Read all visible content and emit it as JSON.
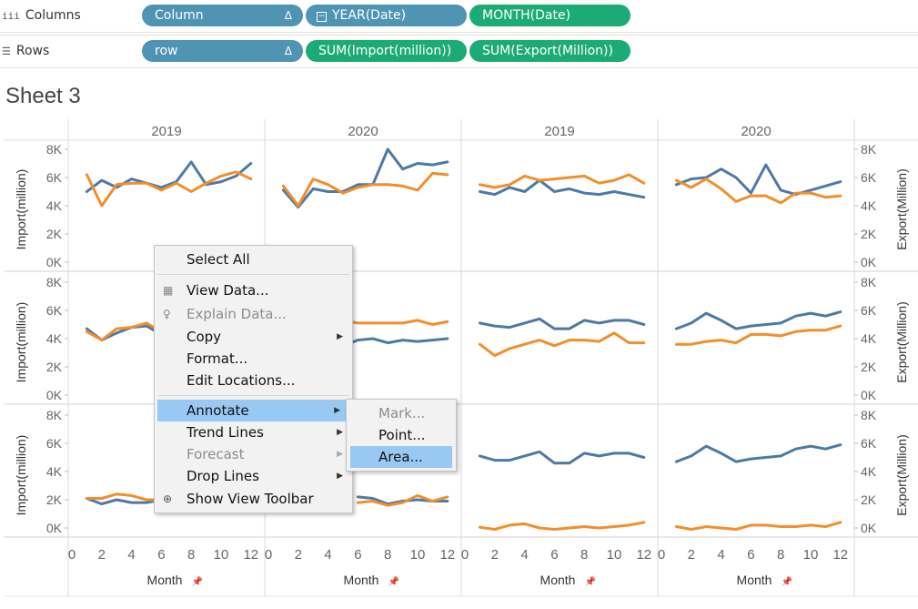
{
  "shelves": {
    "columns": {
      "label": "Columns",
      "pills": [
        {
          "text": "Column",
          "color": "blue",
          "delta": "Δ"
        },
        {
          "text": "YEAR(Date)",
          "color": "blue",
          "prefix": "⊟"
        },
        {
          "text": "MONTH(Date)",
          "color": "green"
        }
      ]
    },
    "rows": {
      "label": "Rows",
      "pills": [
        {
          "text": "row",
          "color": "blue",
          "delta": "Δ"
        },
        {
          "text": "SUM(Import(million))",
          "color": "green"
        },
        {
          "text": "SUM(Export(Million))",
          "color": "green"
        }
      ]
    }
  },
  "sheet_title": "Sheet 3",
  "context_menu": {
    "items": [
      {
        "label": "Select All",
        "enabled": true
      },
      {
        "label": "View Data...",
        "enabled": true,
        "icon": "grid-icon"
      },
      {
        "label": "Explain Data...",
        "enabled": false,
        "icon": "lightbulb-icon"
      },
      {
        "label": "Copy",
        "enabled": true,
        "submenu": true
      },
      {
        "label": "Format...",
        "enabled": true
      },
      {
        "label": "Edit Locations...",
        "enabled": true
      },
      {
        "label": "Annotate",
        "enabled": true,
        "submenu": true,
        "highlighted": true
      },
      {
        "label": "Trend Lines",
        "enabled": true,
        "submenu": true
      },
      {
        "label": "Forecast",
        "enabled": false,
        "submenu": true
      },
      {
        "label": "Drop Lines",
        "enabled": true,
        "submenu": true
      },
      {
        "label": "Show View Toolbar",
        "enabled": true,
        "icon": "zoom-icon"
      }
    ],
    "annotate_submenu": [
      {
        "label": "Mark...",
        "enabled": false
      },
      {
        "label": "Point...",
        "enabled": true
      },
      {
        "label": "Area...",
        "enabled": true,
        "highlighted": true
      }
    ]
  },
  "colors": {
    "import": "#4e79a7",
    "export": "#f28e2b",
    "pill_blue": "#4f94b3",
    "pill_green": "#1cab77",
    "menu_highlight": "#99c9f2"
  },
  "chart_data": {
    "type": "line",
    "layout": "3 rows x 4 columns small multiples, dual axis",
    "column_headers": [
      "2019",
      "2020",
      "2019",
      "2020"
    ],
    "x_label": "Month",
    "x_ticks": [
      "0",
      "2",
      "4",
      "6",
      "8",
      "10",
      "12"
    ],
    "xlim": [
      0,
      12.5
    ],
    "left_axis_label": "Import(million)",
    "right_axis_label": "Export(Million)",
    "y_ticks": [
      "0K",
      "2K",
      "4K",
      "6K",
      "8K"
    ],
    "ylim": [
      0,
      8000
    ],
    "x": [
      1,
      2,
      3,
      4,
      5,
      6,
      7,
      8,
      9,
      10,
      11,
      12
    ],
    "panels": [
      {
        "row": 0,
        "col": 0,
        "series": [
          {
            "name": "Import",
            "values": [
              5000,
              5800,
              5300,
              5900,
              5600,
              5300,
              5700,
              7100,
              5500,
              5700,
              6100,
              7000
            ]
          },
          {
            "name": "Export",
            "values": [
              6200,
              4000,
              5500,
              5600,
              5600,
              5100,
              5600,
              5000,
              5600,
              6100,
              6400,
              5900
            ]
          }
        ]
      },
      {
        "row": 0,
        "col": 1,
        "series": [
          {
            "name": "Import",
            "values": [
              5100,
              3900,
              5200,
              5000,
              5000,
              5500,
              5500,
              8000,
              6600,
              7000,
              6900,
              7100
            ]
          },
          {
            "name": "Export",
            "values": [
              5400,
              4000,
              5900,
              5500,
              4900,
              5300,
              5500,
              5500,
              5400,
              5100,
              6300,
              6200
            ]
          }
        ]
      },
      {
        "row": 0,
        "col": 2,
        "series": [
          {
            "name": "Import",
            "values": [
              5000,
              4800,
              5300,
              5000,
              5800,
              5000,
              5200,
              4900,
              4800,
              5000,
              4800,
              4600
            ]
          },
          {
            "name": "Export",
            "values": [
              5500,
              5300,
              5500,
              6100,
              5800,
              5900,
              6000,
              6100,
              5600,
              5800,
              6200,
              5600
            ]
          }
        ]
      },
      {
        "row": 0,
        "col": 3,
        "series": [
          {
            "name": "Import",
            "values": [
              5500,
              5900,
              6000,
              6600,
              6000,
              4900,
              6900,
              5100,
              4800,
              5100,
              5400,
              5700
            ]
          },
          {
            "name": "Export",
            "values": [
              5800,
              5300,
              5900,
              5200,
              4300,
              4700,
              4700,
              4200,
              4900,
              4900,
              4600,
              4700
            ]
          }
        ]
      },
      {
        "row": 1,
        "col": 0,
        "series": [
          {
            "name": "Import",
            "values": [
              4700,
              3900,
              4400,
              4800,
              4900,
              4300,
              null,
              null,
              null,
              null,
              null,
              null
            ]
          },
          {
            "name": "Export",
            "values": [
              4500,
              3900,
              4700,
              4800,
              5100,
              4500,
              null,
              null,
              null,
              null,
              null,
              null
            ]
          }
        ]
      },
      {
        "row": 1,
        "col": 1,
        "series": [
          {
            "name": "Import",
            "values": [
              null,
              null,
              null,
              null,
              3500,
              3900,
              4000,
              3700,
              3900,
              3800,
              3900,
              4000
            ]
          },
          {
            "name": "Export",
            "values": [
              null,
              null,
              null,
              null,
              5300,
              5100,
              5100,
              5100,
              5100,
              5300,
              5000,
              5200
            ]
          }
        ]
      },
      {
        "row": 1,
        "col": 2,
        "series": [
          {
            "name": "Import",
            "values": [
              5100,
              4900,
              4800,
              5100,
              5400,
              4700,
              4700,
              5300,
              5100,
              5300,
              5300,
              5000
            ]
          },
          {
            "name": "Export",
            "values": [
              3600,
              2800,
              3300,
              3600,
              3900,
              3500,
              3900,
              3900,
              3800,
              4400,
              3700,
              3700
            ]
          }
        ]
      },
      {
        "row": 1,
        "col": 3,
        "series": [
          {
            "name": "Import",
            "values": [
              4700,
              5100,
              5800,
              5300,
              4700,
              4900,
              5000,
              5100,
              5600,
              5800,
              5600,
              5900
            ]
          },
          {
            "name": "Export",
            "values": [
              3600,
              3600,
              3800,
              3900,
              3700,
              4300,
              4300,
              4200,
              4500,
              4600,
              4600,
              4900
            ]
          }
        ]
      },
      {
        "row": 2,
        "col": 0,
        "series": [
          {
            "name": "Import",
            "values": [
              2100,
              1700,
              2000,
              1800,
              1800,
              2000,
              null,
              null,
              null,
              null,
              null,
              null
            ]
          },
          {
            "name": "Export",
            "values": [
              2100,
              2100,
              2400,
              2300,
              2000,
              2000,
              null,
              null,
              null,
              null,
              null,
              null
            ]
          }
        ]
      },
      {
        "row": 2,
        "col": 1,
        "series": [
          {
            "name": "Import",
            "values": [
              null,
              null,
              null,
              null,
              null,
              2200,
              2100,
              1700,
              1900,
              2000,
              1900,
              1900
            ]
          },
          {
            "name": "Export",
            "values": [
              null,
              null,
              null,
              null,
              null,
              1800,
              1900,
              1600,
              1800,
              2300,
              1900,
              2200
            ]
          }
        ]
      },
      {
        "row": 2,
        "col": 2,
        "series": [
          {
            "name": "Import",
            "values": [
              5100,
              4800,
              4800,
              5100,
              5400,
              4600,
              4600,
              5300,
              5100,
              5300,
              5300,
              5000
            ]
          },
          {
            "name": "Export",
            "values": [
              50,
              -100,
              200,
              300,
              0,
              -100,
              0,
              100,
              0,
              100,
              200,
              400
            ]
          }
        ]
      },
      {
        "row": 2,
        "col": 3,
        "series": [
          {
            "name": "Import",
            "values": [
              4700,
              5100,
              5800,
              5300,
              4700,
              4900,
              5000,
              5100,
              5600,
              5800,
              5600,
              5900
            ]
          },
          {
            "name": "Export",
            "values": [
              100,
              -100,
              100,
              0,
              -100,
              200,
              200,
              100,
              100,
              200,
              100,
              400
            ]
          }
        ]
      }
    ]
  }
}
